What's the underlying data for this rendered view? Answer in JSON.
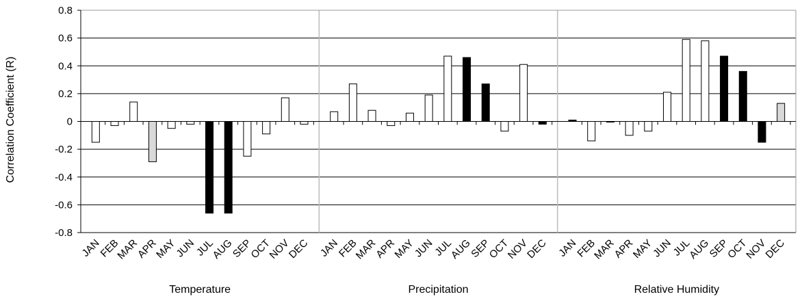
{
  "chart_data": {
    "type": "bar",
    "ylabel": "Correlation Coefficient (R)",
    "ylim": [
      -0.8,
      0.8
    ],
    "yticks": [
      -0.8,
      -0.6,
      -0.4,
      -0.2,
      0,
      0.2,
      0.4,
      0.6,
      0.8
    ],
    "ytick_labels": [
      "-0.8",
      "-0.6",
      "-0.4",
      "-0.2",
      "0",
      "0.2",
      "0.4",
      "0.6",
      "0.8"
    ],
    "grid": true,
    "categories": [
      "JAN",
      "FEB",
      "MAR",
      "APR",
      "MAY",
      "JUN",
      "JUL",
      "AUG",
      "SEP",
      "OCT",
      "NOV",
      "DEC"
    ],
    "fill_colors": {
      "white": "#ffffff",
      "gray": "#d9d9d9",
      "black": "#000000"
    },
    "groups": [
      {
        "label": "Temperature",
        "values": [
          -0.15,
          -0.03,
          0.14,
          -0.29,
          -0.05,
          -0.02,
          -0.66,
          -0.66,
          -0.25,
          -0.09,
          0.17,
          -0.02
        ],
        "fills": [
          "white",
          "white",
          "white",
          "gray",
          "white",
          "white",
          "black",
          "black",
          "white",
          "white",
          "white",
          "white"
        ]
      },
      {
        "label": "Precipitation",
        "values": [
          0.07,
          0.27,
          0.08,
          -0.03,
          0.06,
          0.19,
          0.47,
          0.46,
          0.27,
          -0.07,
          0.41,
          -0.02
        ],
        "fills": [
          "white",
          "white",
          "white",
          "white",
          "white",
          "white",
          "white",
          "black",
          "black",
          "white",
          "white",
          "black"
        ]
      },
      {
        "label": "Relative Humidity",
        "values": [
          0.01,
          -0.14,
          0.0,
          -0.1,
          -0.07,
          0.21,
          0.59,
          0.58,
          0.47,
          0.36,
          -0.15,
          0.13
        ],
        "fills": [
          "black",
          "white",
          "white",
          "white",
          "white",
          "white",
          "white",
          "white",
          "black",
          "black",
          "black",
          "gray"
        ]
      }
    ]
  }
}
